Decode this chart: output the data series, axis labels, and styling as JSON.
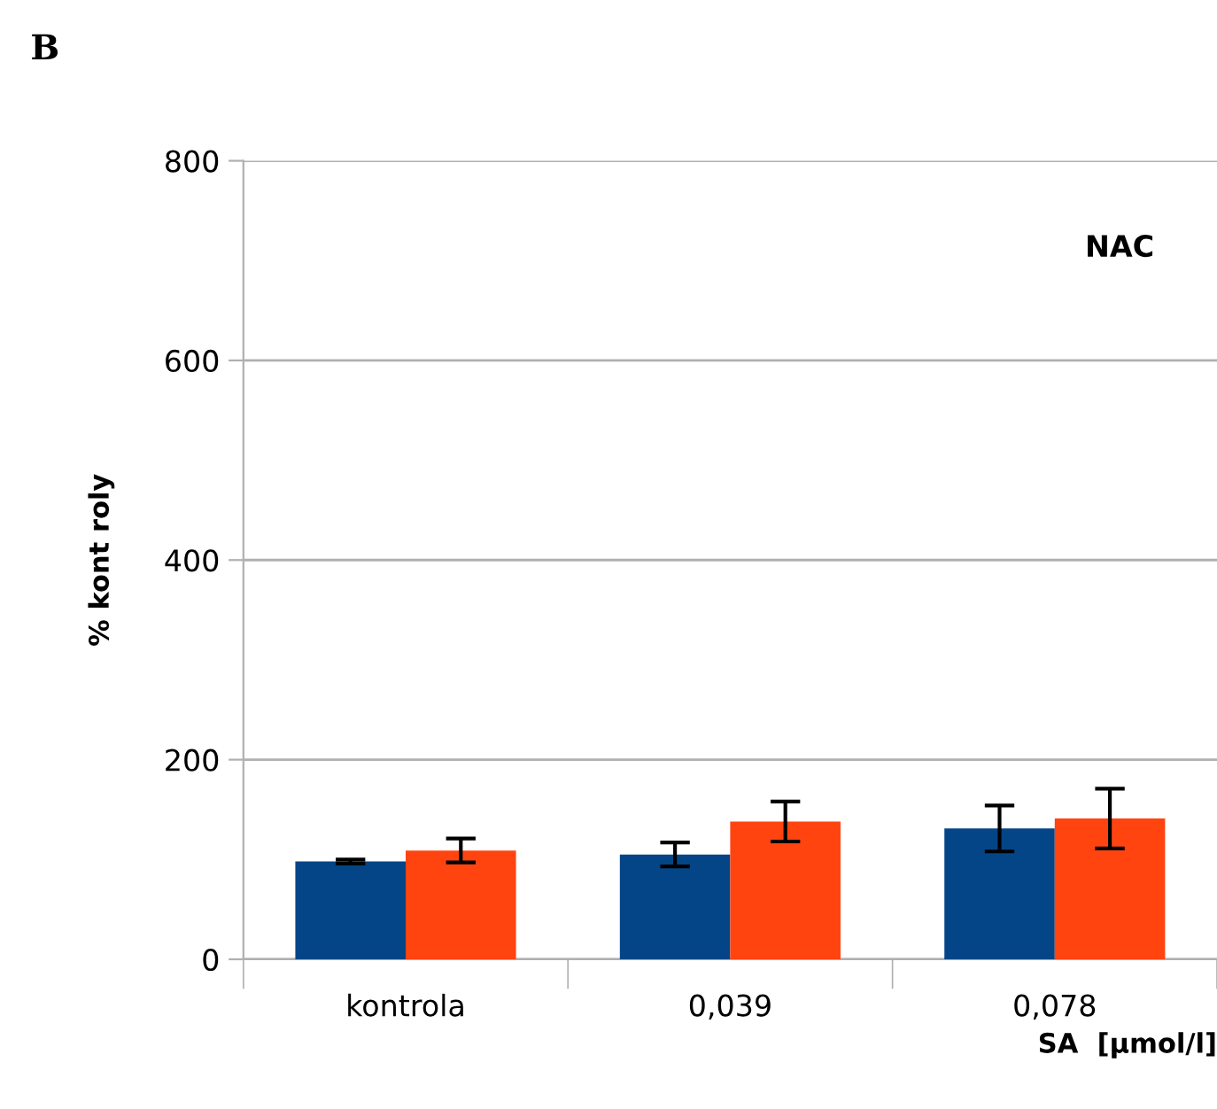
{
  "chart_data": {
    "type": "bar",
    "title": "B",
    "xlabel": "SA  [µmol/l]",
    "ylabel": "% kont roly",
    "annotations": [
      "NAC"
    ],
    "categories": [
      "kontrola",
      "0,039",
      "0,078"
    ],
    "series": [
      {
        "color": "#034587",
        "values": [
          98,
          105,
          131
        ],
        "errors": [
          2,
          12,
          23
        ]
      },
      {
        "color": "#ff4410",
        "values": [
          109,
          138,
          141
        ],
        "errors": [
          12,
          20,
          30
        ]
      }
    ],
    "ylim": [
      0,
      800
    ],
    "yticks": [
      0,
      200,
      400,
      600,
      800
    ],
    "grid": "y",
    "legend": false
  }
}
